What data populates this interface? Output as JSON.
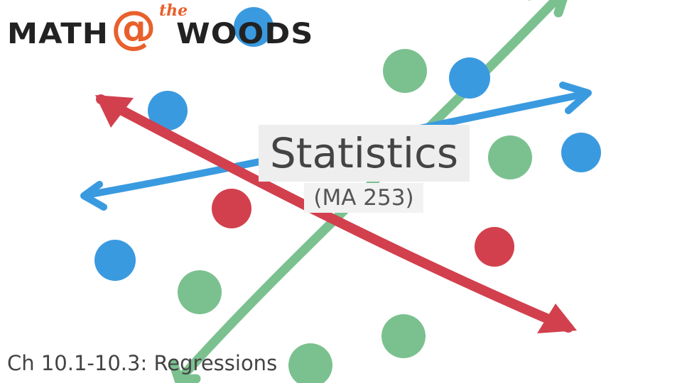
{
  "logo": {
    "part1": "MATH",
    "at": "@",
    "the": "the",
    "part2": "WOODS",
    "colors": {
      "text": "#222222",
      "accent": "#e8602c"
    }
  },
  "title": "Statistics",
  "subtitle": "(MA 253)",
  "section": "Ch 10.1-10.3: Regressions",
  "colors": {
    "green": "#7bc18f",
    "blue": "#3a9ae0",
    "red": "#d2404e",
    "title_box": "#eeeeee",
    "text": "#444444"
  }
}
